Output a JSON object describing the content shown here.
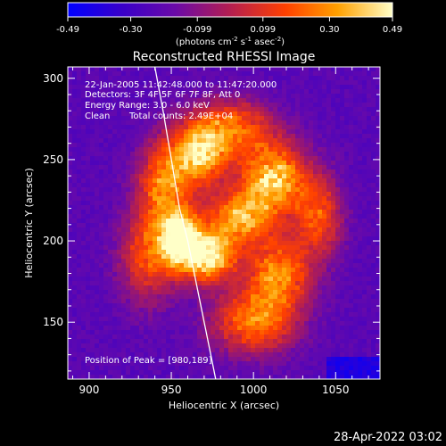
{
  "chart_data": {
    "type": "heatmap",
    "title": "Reconstructed RHESSI Image",
    "xlabel": "Heliocentric X (arcsec)",
    "ylabel": "Heliocentric Y (arcsec)",
    "xlim": [
      887,
      1077
    ],
    "ylim": [
      115,
      307
    ],
    "xticks": [
      900,
      950,
      1000,
      1050
    ],
    "yticks": [
      150,
      200,
      250,
      300
    ],
    "colorbar": {
      "ticks": [
        -0.49,
        -0.3,
        -0.099,
        0.099,
        0.3,
        0.49
      ],
      "tick_labels": [
        "-0.49",
        "-0.30",
        "-0.099",
        "0.099",
        "0.30",
        "0.49"
      ],
      "label_main": "(photons cm",
      "label_exp1": "-2",
      "label_mid1": " s",
      "label_exp2": "-1",
      "label_mid2": " asec",
      "label_exp3": "-2",
      "label_end": ")",
      "colors": [
        "#0000ff",
        "#3a00c8",
        "#6a0aa8",
        "#b41e50",
        "#ff4000",
        "#ffa000",
        "#ffffc8"
      ]
    },
    "annotations": {
      "time_range": "22-Jan-2005 11:42:48.000 to 11:47:20.000",
      "detectors": "Detectors: 3F 4F 5F 6F 7F 8F, Att 0",
      "energy_range": "Energy Range: 3.0 - 6.0 keV",
      "clean": "Clean",
      "total_counts": "Total counts: 2.49E+04",
      "peak": "Position of Peak = [980,189]"
    },
    "peak": [
      980,
      189
    ],
    "limb_arc": [
      [
        940,
        307
      ],
      [
        945,
        280
      ],
      [
        950,
        250
      ],
      [
        955,
        220
      ],
      [
        960,
        200
      ],
      [
        966,
        170
      ],
      [
        972,
        140
      ],
      [
        977,
        115
      ]
    ],
    "sources": [
      {
        "x": 955,
        "y": 201,
        "amp": 0.49,
        "sx": 9,
        "sy": 13
      },
      {
        "x": 973,
        "y": 190,
        "amp": 0.44,
        "sx": 11,
        "sy": 11
      },
      {
        "x": 1012,
        "y": 238,
        "amp": 0.42,
        "sx": 14,
        "sy": 16
      },
      {
        "x": 967,
        "y": 252,
        "amp": 0.36,
        "sx": 12,
        "sy": 13
      },
      {
        "x": 990,
        "y": 214,
        "amp": 0.3,
        "sx": 14,
        "sy": 12
      },
      {
        "x": 945,
        "y": 235,
        "amp": 0.25,
        "sx": 11,
        "sy": 18
      },
      {
        "x": 1015,
        "y": 180,
        "amp": 0.27,
        "sx": 14,
        "sy": 16
      },
      {
        "x": 1000,
        "y": 150,
        "amp": 0.24,
        "sx": 18,
        "sy": 14
      },
      {
        "x": 985,
        "y": 270,
        "amp": 0.22,
        "sx": 18,
        "sy": 12
      },
      {
        "x": 935,
        "y": 190,
        "amp": 0.15,
        "sx": 12,
        "sy": 20
      },
      {
        "x": 1040,
        "y": 215,
        "amp": 0.16,
        "sx": 10,
        "sy": 18
      }
    ],
    "background_level": -0.22,
    "footer_date": "28-Apr-2022 03:02"
  }
}
